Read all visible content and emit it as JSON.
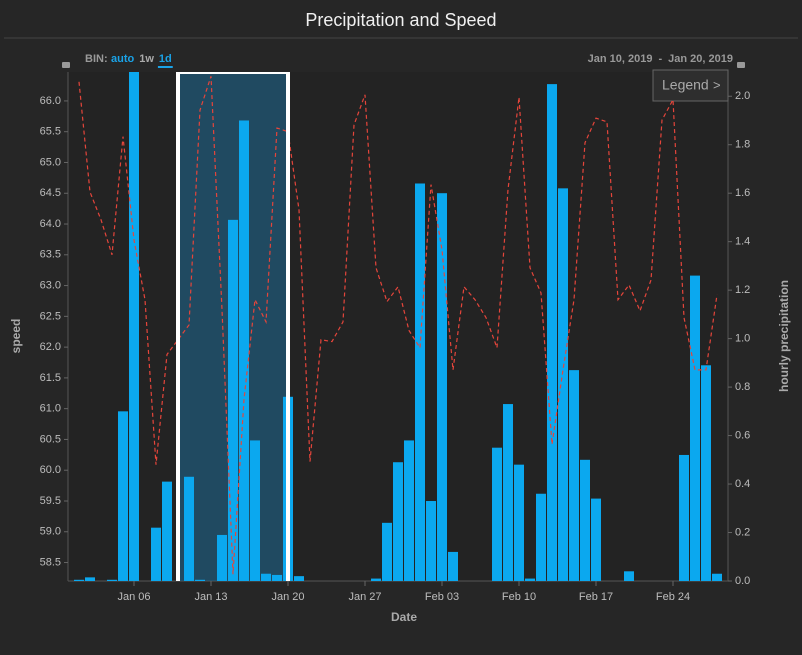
{
  "chart_data": {
    "type": "combo",
    "title": "Precipitation and Speed",
    "bin_label": "BIN:",
    "bin_options": [
      "auto",
      "1w",
      "1d"
    ],
    "bin_active": "1d",
    "range_label": {
      "start": "Jan 10, 2019",
      "separator": "-",
      "end": "Jan 20, 2019"
    },
    "legend_button": {
      "text": "Legend",
      "arrow": ">"
    },
    "xlabel": "Date",
    "ylabel": "speed",
    "y2label": "hourly precipitation",
    "x": [
      "2019-01-01",
      "2019-01-02",
      "2019-01-03",
      "2019-01-04",
      "2019-01-05",
      "2019-01-06",
      "2019-01-07",
      "2019-01-08",
      "2019-01-09",
      "2019-01-10",
      "2019-01-11",
      "2019-01-12",
      "2019-01-13",
      "2019-01-14",
      "2019-01-15",
      "2019-01-16",
      "2019-01-17",
      "2019-01-18",
      "2019-01-19",
      "2019-01-20",
      "2019-01-21",
      "2019-01-22",
      "2019-01-23",
      "2019-01-24",
      "2019-01-25",
      "2019-01-26",
      "2019-01-27",
      "2019-01-28",
      "2019-01-29",
      "2019-01-30",
      "2019-01-31",
      "2019-02-01",
      "2019-02-02",
      "2019-02-03",
      "2019-02-04",
      "2019-02-05",
      "2019-02-06",
      "2019-02-07",
      "2019-02-08",
      "2019-02-09",
      "2019-02-10",
      "2019-02-11",
      "2019-02-12",
      "2019-02-13",
      "2019-02-14",
      "2019-02-15",
      "2019-02-16",
      "2019-02-17",
      "2019-02-18",
      "2019-02-19",
      "2019-02-20",
      "2019-02-21",
      "2019-02-22",
      "2019-02-23",
      "2019-02-24",
      "2019-02-25",
      "2019-02-26",
      "2019-02-27",
      "2019-02-28"
    ],
    "series": [
      {
        "type": "line",
        "axis": "y",
        "color": "#e5453b",
        "dashed": true,
        "values": [
          66.31,
          64.52,
          64.07,
          63.5,
          65.42,
          63.74,
          62.77,
          60.09,
          61.88,
          62.12,
          62.36,
          65.85,
          66.4,
          62.61,
          58.31,
          61.15,
          62.77,
          62.41,
          65.56,
          65.5,
          64.23,
          60.14,
          62.12,
          62.09,
          62.41,
          65.61,
          66.1,
          63.29,
          62.74,
          62.98,
          62.27,
          61.99,
          64.64,
          63.58,
          61.63,
          62.98,
          62.77,
          62.48,
          61.99,
          64.56,
          66.06,
          63.29,
          62.88,
          60.42,
          61.63,
          62.77,
          65.32,
          65.72,
          65.66,
          62.77,
          63.01,
          62.59,
          63.09,
          65.69,
          66.02,
          62.48,
          61.63,
          61.63,
          62.85
        ]
      },
      {
        "type": "bar",
        "axis": "y2",
        "color": "#0ba8ef",
        "values": [
          0.005,
          0.015,
          0,
          0.005,
          0.7,
          2.2,
          0,
          0.22,
          0.41,
          0,
          0.43,
          0.005,
          0,
          0.19,
          1.49,
          1.9,
          0.58,
          0.03,
          0.025,
          0.76,
          0.02,
          0,
          0,
          0,
          0,
          0,
          0,
          0.01,
          0.24,
          0.49,
          0.58,
          1.64,
          0.33,
          1.6,
          0.12,
          0,
          0,
          0,
          0.55,
          0.73,
          0.48,
          0.01,
          0.36,
          2.05,
          1.62,
          0.87,
          0.5,
          0.34,
          0,
          0,
          0.04,
          0,
          0,
          0,
          0,
          0.52,
          1.26,
          0.89,
          0.03
        ]
      }
    ],
    "xlim": [
      "2018-12-31",
      "2019-03-01"
    ],
    "xticks": [
      {
        "value": "2019-01-06",
        "label": "Jan 06"
      },
      {
        "value": "2019-01-13",
        "label": "Jan 13"
      },
      {
        "value": "2019-01-20",
        "label": "Jan 20"
      },
      {
        "value": "2019-01-27",
        "label": "Jan 27"
      },
      {
        "value": "2019-02-03",
        "label": "Feb 03"
      },
      {
        "value": "2019-02-10",
        "label": "Feb 10"
      },
      {
        "value": "2019-02-17",
        "label": "Feb 17"
      },
      {
        "value": "2019-02-24",
        "label": "Feb 24"
      }
    ],
    "ylim": [
      58.2,
      66.47
    ],
    "yticks": [
      58.5,
      {
        "value": 59,
        "label": "59.0"
      },
      59.5,
      {
        "value": 60,
        "label": "60.0"
      },
      60.5,
      {
        "value": 61,
        "label": "61.0"
      },
      61.5,
      {
        "value": 62,
        "label": "62.0"
      },
      62.5,
      {
        "value": 63,
        "label": "63.0"
      },
      63.5,
      {
        "value": 64,
        "label": "64.0"
      },
      64.5,
      {
        "value": 65,
        "label": "65.0"
      },
      65.5,
      {
        "value": 66,
        "label": "66.0"
      }
    ],
    "y2lim": [
      0,
      2.1
    ],
    "y2ticks": [
      {
        "value": 0,
        "label": "0.0"
      },
      0.2,
      0.4,
      0.6,
      0.8,
      {
        "value": 1,
        "label": "1.0"
      },
      1.2,
      1.4,
      1.6,
      1.8,
      {
        "value": 2,
        "label": "2.0"
      }
    ],
    "grid": false
  }
}
